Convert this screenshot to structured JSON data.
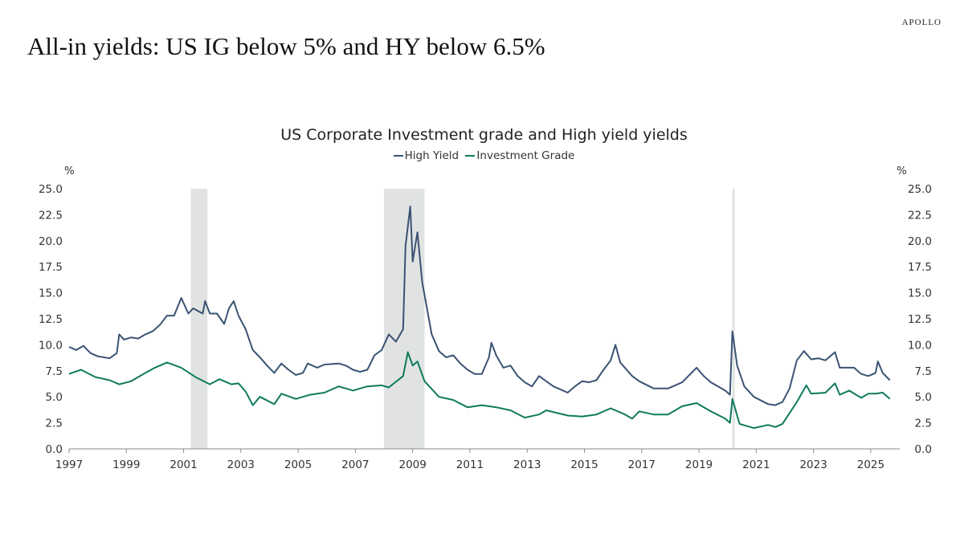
{
  "brand": "APOLLO",
  "headline": "All-in yields: US IG below 5% and HY below 6.5%",
  "chart_data": {
    "type": "line",
    "title": "US Corporate Investment grade and High yield yields",
    "ylabel_left": "%",
    "ylabel_right": "%",
    "ylim": [
      0,
      25
    ],
    "yticks": [
      "0.0",
      "2.5",
      "5.0",
      "7.5",
      "10.0",
      "12.5",
      "15.0",
      "17.5",
      "20.0",
      "22.5",
      "25.0"
    ],
    "xlim": [
      "1997-01",
      "2026-06"
    ],
    "xticks": [
      "1997",
      "1999",
      "2001",
      "2003",
      "2005",
      "2007",
      "2009",
      "2011",
      "2013",
      "2015",
      "2017",
      "2019",
      "2021",
      "2023",
      "2025"
    ],
    "grid": false,
    "legend": "top-center",
    "recessions": [
      [
        "2001-04",
        "2001-11"
      ],
      [
        "2008-01",
        "2009-06"
      ],
      [
        "2020-03",
        "2020-04"
      ]
    ],
    "series": [
      {
        "name": "High Yield",
        "color": "#3b5373",
        "points": [
          [
            "1997-01",
            9.8
          ],
          [
            "1997-04",
            9.5
          ],
          [
            "1997-07",
            9.9
          ],
          [
            "1997-10",
            9.2
          ],
          [
            "1998-01",
            8.9
          ],
          [
            "1998-06",
            8.7
          ],
          [
            "1998-09",
            9.2
          ],
          [
            "1998-10",
            11.0
          ],
          [
            "1998-12",
            10.5
          ],
          [
            "1999-03",
            10.7
          ],
          [
            "1999-06",
            10.6
          ],
          [
            "1999-09",
            11.0
          ],
          [
            "1999-12",
            11.3
          ],
          [
            "2000-03",
            11.9
          ],
          [
            "2000-06",
            12.8
          ],
          [
            "2000-09",
            12.8
          ],
          [
            "2000-12",
            14.5
          ],
          [
            "2001-03",
            13.0
          ],
          [
            "2001-05",
            13.5
          ],
          [
            "2001-09",
            13.0
          ],
          [
            "2001-10",
            14.2
          ],
          [
            "2001-12",
            13.0
          ],
          [
            "2002-03",
            13.0
          ],
          [
            "2002-06",
            12.0
          ],
          [
            "2002-08",
            13.5
          ],
          [
            "2002-10",
            14.2
          ],
          [
            "2002-12",
            12.8
          ],
          [
            "2003-03",
            11.5
          ],
          [
            "2003-06",
            9.5
          ],
          [
            "2003-09",
            8.8
          ],
          [
            "2003-12",
            8.0
          ],
          [
            "2004-03",
            7.3
          ],
          [
            "2004-06",
            8.2
          ],
          [
            "2004-09",
            7.6
          ],
          [
            "2004-12",
            7.1
          ],
          [
            "2005-03",
            7.3
          ],
          [
            "2005-05",
            8.2
          ],
          [
            "2005-09",
            7.8
          ],
          [
            "2005-12",
            8.1
          ],
          [
            "2006-06",
            8.2
          ],
          [
            "2006-09",
            8.0
          ],
          [
            "2006-12",
            7.6
          ],
          [
            "2007-03",
            7.4
          ],
          [
            "2007-06",
            7.6
          ],
          [
            "2007-09",
            9.0
          ],
          [
            "2007-12",
            9.5
          ],
          [
            "2008-03",
            11.0
          ],
          [
            "2008-06",
            10.3
          ],
          [
            "2008-09",
            11.5
          ],
          [
            "2008-10",
            19.5
          ],
          [
            "2008-12",
            23.3
          ],
          [
            "2009-01",
            18.0
          ],
          [
            "2009-03",
            20.8
          ],
          [
            "2009-05",
            16.0
          ],
          [
            "2009-07",
            13.5
          ],
          [
            "2009-09",
            11.0
          ],
          [
            "2009-12",
            9.4
          ],
          [
            "2010-03",
            8.8
          ],
          [
            "2010-06",
            9.0
          ],
          [
            "2010-09",
            8.2
          ],
          [
            "2010-12",
            7.6
          ],
          [
            "2011-03",
            7.2
          ],
          [
            "2011-06",
            7.2
          ],
          [
            "2011-09",
            8.8
          ],
          [
            "2011-10",
            10.2
          ],
          [
            "2011-12",
            9.0
          ],
          [
            "2012-03",
            7.8
          ],
          [
            "2012-06",
            8.0
          ],
          [
            "2012-09",
            7.0
          ],
          [
            "2012-12",
            6.4
          ],
          [
            "2013-03",
            6.0
          ],
          [
            "2013-06",
            7.0
          ],
          [
            "2013-09",
            6.5
          ],
          [
            "2013-12",
            6.0
          ],
          [
            "2014-06",
            5.4
          ],
          [
            "2014-09",
            6.0
          ],
          [
            "2014-12",
            6.5
          ],
          [
            "2015-03",
            6.4
          ],
          [
            "2015-06",
            6.6
          ],
          [
            "2015-09",
            7.6
          ],
          [
            "2015-12",
            8.5
          ],
          [
            "2016-02",
            10.0
          ],
          [
            "2016-04",
            8.3
          ],
          [
            "2016-09",
            7.0
          ],
          [
            "2016-12",
            6.5
          ],
          [
            "2017-06",
            5.8
          ],
          [
            "2017-12",
            5.8
          ],
          [
            "2018-06",
            6.4
          ],
          [
            "2018-12",
            7.8
          ],
          [
            "2019-03",
            7.0
          ],
          [
            "2019-06",
            6.4
          ],
          [
            "2019-12",
            5.6
          ],
          [
            "2020-02",
            5.2
          ],
          [
            "2020-03",
            11.3
          ],
          [
            "2020-05",
            8.0
          ],
          [
            "2020-08",
            6.0
          ],
          [
            "2020-12",
            5.0
          ],
          [
            "2021-06",
            4.3
          ],
          [
            "2021-09",
            4.2
          ],
          [
            "2021-12",
            4.5
          ],
          [
            "2022-03",
            5.8
          ],
          [
            "2022-06",
            8.5
          ],
          [
            "2022-09",
            9.4
          ],
          [
            "2022-12",
            8.6
          ],
          [
            "2023-03",
            8.7
          ],
          [
            "2023-06",
            8.5
          ],
          [
            "2023-10",
            9.3
          ],
          [
            "2023-12",
            7.8
          ],
          [
            "2024-06",
            7.8
          ],
          [
            "2024-09",
            7.2
          ],
          [
            "2024-12",
            7.0
          ],
          [
            "2025-03",
            7.3
          ],
          [
            "2025-04",
            8.4
          ],
          [
            "2025-06",
            7.3
          ],
          [
            "2025-09",
            6.6
          ]
        ]
      },
      {
        "name": "Investment Grade",
        "color": "#0f7a5e",
        "points": [
          [
            "1997-01",
            7.2
          ],
          [
            "1997-06",
            7.6
          ],
          [
            "1997-12",
            6.9
          ],
          [
            "1998-06",
            6.6
          ],
          [
            "1998-10",
            6.2
          ],
          [
            "1999-03",
            6.5
          ],
          [
            "1999-09",
            7.3
          ],
          [
            "2000-01",
            7.8
          ],
          [
            "2000-06",
            8.3
          ],
          [
            "2000-12",
            7.8
          ],
          [
            "2001-06",
            6.9
          ],
          [
            "2001-12",
            6.2
          ],
          [
            "2002-04",
            6.7
          ],
          [
            "2002-09",
            6.2
          ],
          [
            "2002-12",
            6.3
          ],
          [
            "2003-03",
            5.5
          ],
          [
            "2003-06",
            4.2
          ],
          [
            "2003-09",
            5.0
          ],
          [
            "2004-03",
            4.3
          ],
          [
            "2004-06",
            5.3
          ],
          [
            "2004-12",
            4.8
          ],
          [
            "2005-06",
            5.2
          ],
          [
            "2005-12",
            5.4
          ],
          [
            "2006-06",
            6.0
          ],
          [
            "2006-12",
            5.6
          ],
          [
            "2007-06",
            6.0
          ],
          [
            "2007-12",
            6.1
          ],
          [
            "2008-03",
            5.9
          ],
          [
            "2008-09",
            7.0
          ],
          [
            "2008-11",
            9.3
          ],
          [
            "2009-01",
            8.0
          ],
          [
            "2009-03",
            8.4
          ],
          [
            "2009-06",
            6.5
          ],
          [
            "2009-12",
            5.0
          ],
          [
            "2010-06",
            4.7
          ],
          [
            "2010-12",
            4.0
          ],
          [
            "2011-06",
            4.2
          ],
          [
            "2011-12",
            4.0
          ],
          [
            "2012-06",
            3.7
          ],
          [
            "2012-12",
            3.0
          ],
          [
            "2013-06",
            3.3
          ],
          [
            "2013-09",
            3.7
          ],
          [
            "2014-06",
            3.2
          ],
          [
            "2014-12",
            3.1
          ],
          [
            "2015-06",
            3.3
          ],
          [
            "2015-12",
            3.9
          ],
          [
            "2016-06",
            3.3
          ],
          [
            "2016-09",
            2.9
          ],
          [
            "2016-12",
            3.6
          ],
          [
            "2017-06",
            3.3
          ],
          [
            "2017-12",
            3.3
          ],
          [
            "2018-06",
            4.1
          ],
          [
            "2018-12",
            4.4
          ],
          [
            "2019-06",
            3.6
          ],
          [
            "2019-12",
            2.9
          ],
          [
            "2020-02",
            2.5
          ],
          [
            "2020-03",
            4.8
          ],
          [
            "2020-06",
            2.4
          ],
          [
            "2020-12",
            2.0
          ],
          [
            "2021-06",
            2.3
          ],
          [
            "2021-09",
            2.1
          ],
          [
            "2021-12",
            2.4
          ],
          [
            "2022-06",
            4.5
          ],
          [
            "2022-10",
            6.1
          ],
          [
            "2022-12",
            5.3
          ],
          [
            "2023-06",
            5.4
          ],
          [
            "2023-10",
            6.3
          ],
          [
            "2023-12",
            5.2
          ],
          [
            "2024-04",
            5.6
          ],
          [
            "2024-09",
            4.9
          ],
          [
            "2024-12",
            5.3
          ],
          [
            "2025-03",
            5.3
          ],
          [
            "2025-06",
            5.4
          ],
          [
            "2025-09",
            4.8
          ]
        ]
      }
    ]
  }
}
